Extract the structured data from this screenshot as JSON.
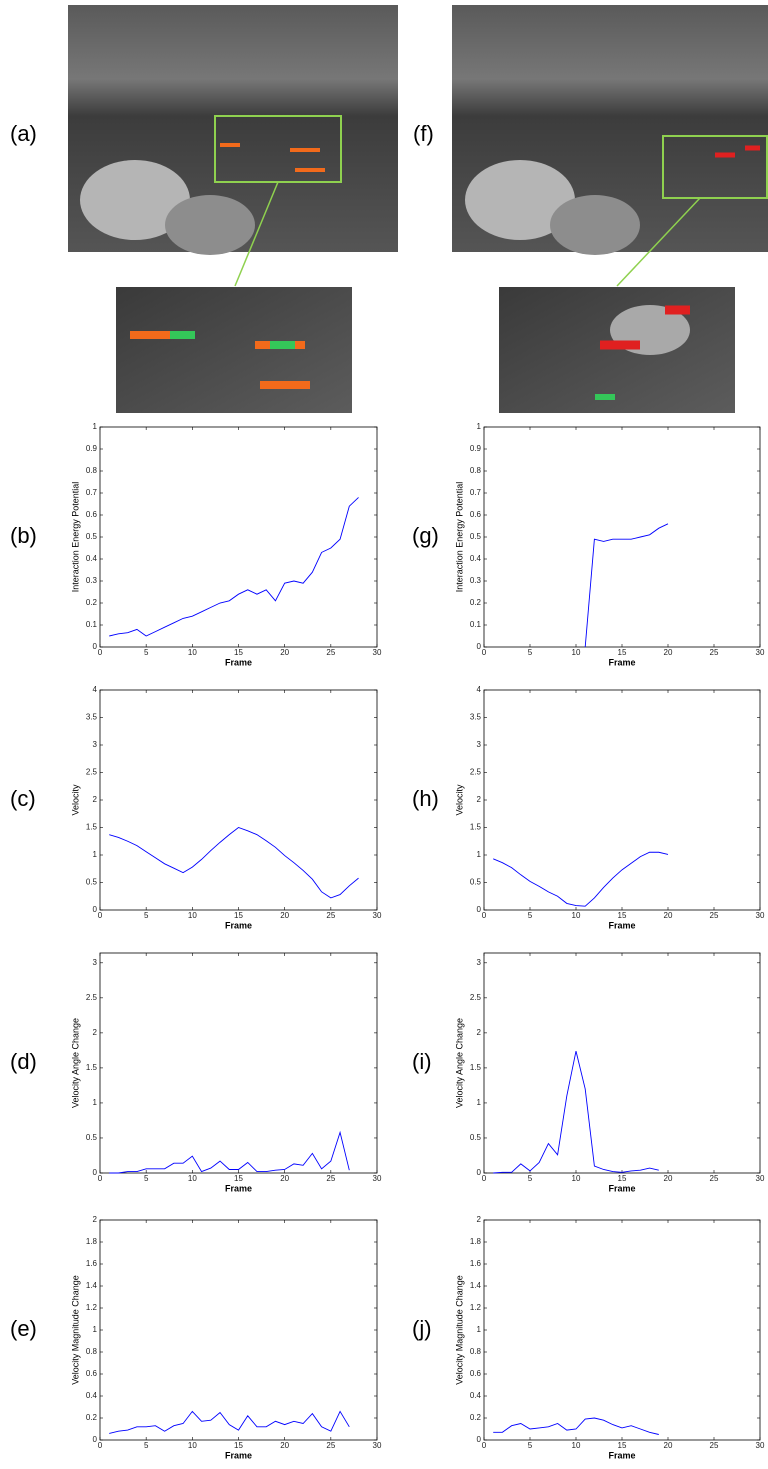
{
  "images": [
    {
      "label": "(a)"
    },
    {
      "label": "(f)"
    }
  ],
  "chart_data": [
    {
      "type": "line",
      "panel_label": "(b)",
      "y_label": "Interaction Energy Potential",
      "x_label": "Frame",
      "color": "#0000ff",
      "xlim": [
        0,
        30
      ],
      "xticks": [
        0,
        5,
        10,
        15,
        20,
        25,
        30
      ],
      "ylim": [
        0,
        1
      ],
      "yticks": [
        0,
        0.1,
        0.2,
        0.3,
        0.4,
        0.5,
        0.6,
        0.7,
        0.8,
        0.9,
        1
      ],
      "x": [
        1,
        2,
        3,
        4,
        5,
        6,
        7,
        8,
        9,
        10,
        11,
        12,
        13,
        14,
        15,
        16,
        17,
        18,
        19,
        20,
        21,
        22,
        23,
        24,
        25,
        26,
        27,
        28
      ],
      "values": [
        0.05,
        0.06,
        0.065,
        0.08,
        0.05,
        0.07,
        0.09,
        0.11,
        0.13,
        0.14,
        0.16,
        0.18,
        0.2,
        0.21,
        0.24,
        0.26,
        0.24,
        0.26,
        0.21,
        0.29,
        0.3,
        0.29,
        0.34,
        0.43,
        0.45,
        0.49,
        0.64,
        0.68
      ]
    },
    {
      "type": "line",
      "panel_label": "(c)",
      "y_label": "Velocity",
      "x_label": "Frame",
      "color": "#0000ff",
      "xlim": [
        0,
        30
      ],
      "xticks": [
        0,
        5,
        10,
        15,
        20,
        25,
        30
      ],
      "ylim": [
        0,
        4
      ],
      "yticks": [
        0,
        0.5,
        1,
        1.5,
        2,
        2.5,
        3,
        3.5,
        4
      ],
      "x": [
        1,
        2,
        3,
        4,
        5,
        6,
        7,
        8,
        9,
        10,
        11,
        12,
        13,
        14,
        15,
        16,
        17,
        18,
        19,
        20,
        21,
        22,
        23,
        24,
        25,
        26,
        27,
        28
      ],
      "values": [
        1.37,
        1.32,
        1.25,
        1.17,
        1.06,
        0.95,
        0.84,
        0.76,
        0.68,
        0.78,
        0.92,
        1.08,
        1.23,
        1.37,
        1.5,
        1.44,
        1.37,
        1.26,
        1.14,
        0.99,
        0.86,
        0.72,
        0.56,
        0.33,
        0.22,
        0.28,
        0.44,
        0.58
      ]
    },
    {
      "type": "line",
      "panel_label": "(d)",
      "y_label": "Velocity Angle Change",
      "x_label": "Frame",
      "color": "#0000ff",
      "xlim": [
        0,
        30
      ],
      "xticks": [
        0,
        5,
        10,
        15,
        20,
        25,
        30
      ],
      "ylim": [
        0,
        3.14
      ],
      "yticks": [
        0,
        0.5,
        1,
        1.5,
        2,
        2.5,
        3
      ],
      "x": [
        1,
        2,
        3,
        4,
        5,
        6,
        7,
        8,
        9,
        10,
        11,
        12,
        13,
        14,
        15,
        16,
        17,
        18,
        19,
        20,
        21,
        22,
        23,
        24,
        25,
        26,
        27
      ],
      "values": [
        0,
        0,
        0.02,
        0.02,
        0.06,
        0.06,
        0.06,
        0.14,
        0.14,
        0.24,
        0.02,
        0.07,
        0.17,
        0.05,
        0.05,
        0.15,
        0.02,
        0.02,
        0.04,
        0.05,
        0.13,
        0.11,
        0.28,
        0.06,
        0.17,
        0.58,
        0.04
      ]
    },
    {
      "type": "line",
      "panel_label": "(e)",
      "y_label": "Velocity Magnitude Change",
      "x_label": "Frame",
      "color": "#0000ff",
      "xlim": [
        0,
        30
      ],
      "xticks": [
        0,
        5,
        10,
        15,
        20,
        25,
        30
      ],
      "ylim": [
        0,
        2
      ],
      "yticks": [
        0,
        0.2,
        0.4,
        0.6,
        0.8,
        1,
        1.2,
        1.4,
        1.6,
        1.8,
        2
      ],
      "x": [
        1,
        2,
        3,
        4,
        5,
        6,
        7,
        8,
        9,
        10,
        11,
        12,
        13,
        14,
        15,
        16,
        17,
        18,
        19,
        20,
        21,
        22,
        23,
        24,
        25,
        26,
        27
      ],
      "values": [
        0.06,
        0.08,
        0.09,
        0.12,
        0.12,
        0.13,
        0.08,
        0.13,
        0.15,
        0.26,
        0.17,
        0.18,
        0.25,
        0.14,
        0.09,
        0.22,
        0.12,
        0.12,
        0.17,
        0.14,
        0.17,
        0.15,
        0.24,
        0.12,
        0.08,
        0.26,
        0.12
      ]
    },
    {
      "type": "line",
      "panel_label": "(g)",
      "y_label": "Interaction Energy Potential",
      "x_label": "Frame",
      "color": "#0000ff",
      "xlim": [
        0,
        30
      ],
      "xticks": [
        0,
        5,
        10,
        15,
        20,
        25,
        30
      ],
      "ylim": [
        0,
        1
      ],
      "yticks": [
        0,
        0.1,
        0.2,
        0.3,
        0.4,
        0.5,
        0.6,
        0.7,
        0.8,
        0.9,
        1
      ],
      "x": [
        11,
        12,
        13,
        14,
        15,
        16,
        17,
        18,
        19,
        20
      ],
      "values": [
        0,
        0.49,
        0.48,
        0.49,
        0.49,
        0.49,
        0.5,
        0.51,
        0.54,
        0.56
      ]
    },
    {
      "type": "line",
      "panel_label": "(h)",
      "y_label": "Velocity",
      "x_label": "Frame",
      "color": "#0000ff",
      "xlim": [
        0,
        30
      ],
      "xticks": [
        0,
        5,
        10,
        15,
        20,
        25,
        30
      ],
      "ylim": [
        0,
        4
      ],
      "yticks": [
        0,
        0.5,
        1,
        1.5,
        2,
        2.5,
        3,
        3.5,
        4
      ],
      "x": [
        1,
        2,
        3,
        4,
        5,
        6,
        7,
        8,
        9,
        10,
        11,
        12,
        13,
        14,
        15,
        16,
        17,
        18,
        19,
        20
      ],
      "values": [
        0.93,
        0.86,
        0.77,
        0.64,
        0.52,
        0.43,
        0.33,
        0.25,
        0.12,
        0.08,
        0.07,
        0.22,
        0.41,
        0.58,
        0.73,
        0.85,
        0.97,
        1.05,
        1.05,
        1.01
      ]
    },
    {
      "type": "line",
      "panel_label": "(i)",
      "y_label": "Velocity Angle Change",
      "x_label": "Frame",
      "color": "#0000ff",
      "xlim": [
        0,
        30
      ],
      "xticks": [
        0,
        5,
        10,
        15,
        20,
        25,
        30
      ],
      "ylim": [
        0,
        3.14
      ],
      "yticks": [
        0,
        0.5,
        1,
        1.5,
        2,
        2.5,
        3
      ],
      "x": [
        1,
        2,
        3,
        4,
        5,
        6,
        7,
        8,
        9,
        10,
        11,
        12,
        13,
        14,
        15,
        16,
        17,
        18,
        19
      ],
      "values": [
        0,
        0.01,
        0.01,
        0.13,
        0.03,
        0.15,
        0.42,
        0.26,
        1.1,
        1.74,
        1.2,
        0.1,
        0.05,
        0.02,
        0.01,
        0.03,
        0.04,
        0.07,
        0.04
      ]
    },
    {
      "type": "line",
      "panel_label": "(j)",
      "y_label": "Velocity Magnitude Change",
      "x_label": "Frame",
      "color": "#0000ff",
      "xlim": [
        0,
        30
      ],
      "xticks": [
        0,
        5,
        10,
        15,
        20,
        25,
        30
      ],
      "ylim": [
        0,
        2
      ],
      "yticks": [
        0,
        0.2,
        0.4,
        0.6,
        0.8,
        1,
        1.2,
        1.4,
        1.6,
        1.8,
        2
      ],
      "x": [
        1,
        2,
        3,
        4,
        5,
        6,
        7,
        8,
        9,
        10,
        11,
        12,
        13,
        14,
        15,
        16,
        17,
        18,
        19
      ],
      "values": [
        0.07,
        0.07,
        0.13,
        0.15,
        0.1,
        0.11,
        0.12,
        0.15,
        0.09,
        0.1,
        0.19,
        0.2,
        0.18,
        0.14,
        0.11,
        0.13,
        0.1,
        0.07,
        0.05
      ]
    }
  ]
}
